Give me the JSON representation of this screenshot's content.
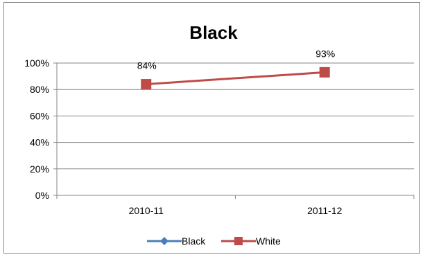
{
  "chart_data": {
    "type": "line",
    "title": "Black",
    "categories": [
      "2010-11",
      "2011-12"
    ],
    "series": [
      {
        "name": "Black",
        "values": [
          null,
          null
        ],
        "color": "#4a7ebb",
        "marker": "diamond"
      },
      {
        "name": "White",
        "values": [
          84,
          93
        ],
        "color": "#be4b48",
        "marker": "square"
      }
    ],
    "data_labels": [
      "84%",
      "93%"
    ],
    "ylim": [
      0,
      100
    ],
    "yticks": [
      0,
      20,
      40,
      60,
      80,
      100
    ],
    "ytick_labels": [
      "0%",
      "20%",
      "40%",
      "60%",
      "80%",
      "100%"
    ],
    "grid": true,
    "legend_position": "bottom"
  }
}
